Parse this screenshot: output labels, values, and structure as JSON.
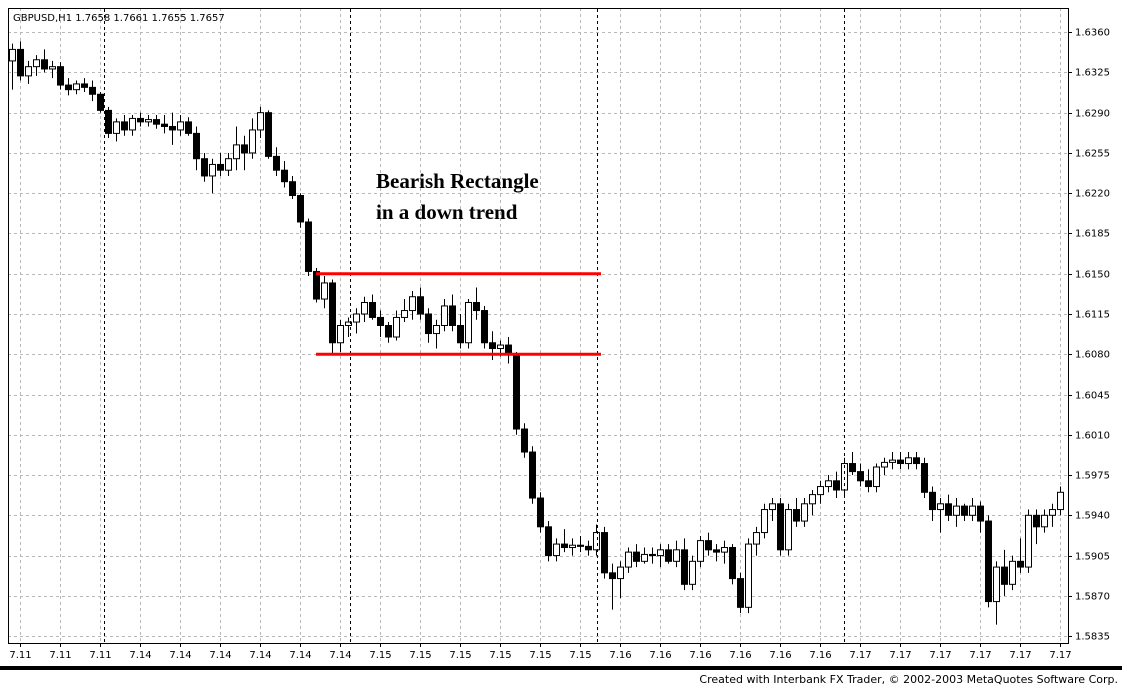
{
  "chart_data": {
    "type": "candlestick",
    "title": "GBPUSD,H1  1.7658 1.7661 1.7655 1.7657",
    "annotation": [
      "Bearish Rectangle",
      "in a down trend"
    ],
    "footer": "Created with Interbank FX Trader, © 2002-2003 MetaQuotes Software Corp.",
    "up_color": "#ffffff",
    "down_color": "#000000",
    "grid": true,
    "ylim": [
      1.5829,
      1.6381
    ],
    "yticks": [
      {
        "value": 1.636,
        "label": "1.6360"
      },
      {
        "value": 1.6325,
        "label": "1.6325"
      },
      {
        "value": 1.629,
        "label": "1.6290"
      },
      {
        "value": 1.6255,
        "label": "1.6255"
      },
      {
        "value": 1.622,
        "label": "1.6220"
      },
      {
        "value": 1.6185,
        "label": "1.6185"
      },
      {
        "value": 1.615,
        "label": "1.6150"
      },
      {
        "value": 1.6115,
        "label": "1.6115"
      },
      {
        "value": 1.608,
        "label": "1.6080"
      },
      {
        "value": 1.6045,
        "label": "1.6045"
      },
      {
        "value": 1.601,
        "label": "1.6010"
      },
      {
        "value": 1.5975,
        "label": "1.5975"
      },
      {
        "value": 1.594,
        "label": "1.5940"
      },
      {
        "value": 1.5905,
        "label": "1.5905"
      },
      {
        "value": 1.587,
        "label": "1.5870"
      },
      {
        "value": 1.5835,
        "label": "1.5835"
      }
    ],
    "levels": [
      {
        "value": 1.615,
        "color": "#ff0000"
      },
      {
        "value": 1.608,
        "color": "#ff0000"
      }
    ],
    "categories": [
      null,
      "7.11",
      null,
      null,
      null,
      null,
      "7.11",
      null,
      null,
      null,
      null,
      "7.11",
      null,
      null,
      null,
      null,
      "7.14",
      null,
      null,
      null,
      null,
      "7.14",
      null,
      null,
      null,
      null,
      "7.14",
      null,
      null,
      null,
      null,
      "7.14",
      null,
      null,
      null,
      null,
      "7.14",
      null,
      null,
      null,
      null,
      "7.14",
      null,
      null,
      null,
      null,
      "7.15",
      null,
      null,
      null,
      null,
      "7.15",
      null,
      null,
      null,
      null,
      "7.15",
      null,
      null,
      null,
      null,
      "7.15",
      null,
      null,
      null,
      null,
      "7.15",
      null,
      null,
      null,
      null,
      "7.15",
      null,
      null,
      null,
      null,
      "7.16",
      null,
      null,
      null,
      null,
      "7.16",
      null,
      null,
      null,
      null,
      "7.16",
      null,
      null,
      null,
      null,
      "7.16",
      null,
      null,
      null,
      null,
      "7.16",
      null,
      null,
      null,
      null,
      "7.16",
      null,
      null,
      null,
      null,
      "7.17",
      null,
      null,
      null,
      null,
      "7.17",
      null,
      null,
      null,
      null,
      "7.17",
      null,
      null,
      null,
      null,
      "7.17",
      null,
      null,
      null,
      null,
      "7.17",
      null,
      null,
      null,
      null,
      "7.17"
    ],
    "ohlc": [
      [
        1.6335,
        1.635,
        1.631,
        1.6345
      ],
      [
        1.6345,
        1.6352,
        1.6318,
        1.6322
      ],
      [
        1.6322,
        1.6335,
        1.6315,
        1.633
      ],
      [
        1.633,
        1.634,
        1.6322,
        1.6336
      ],
      [
        1.6336,
        1.6345,
        1.6325,
        1.6328
      ],
      [
        1.6328,
        1.6335,
        1.632,
        1.633
      ],
      [
        1.633,
        1.6334,
        1.631,
        1.6314
      ],
      [
        1.6314,
        1.632,
        1.6305,
        1.631
      ],
      [
        1.631,
        1.6318,
        1.6306,
        1.6315
      ],
      [
        1.6315,
        1.632,
        1.6308,
        1.6312
      ],
      [
        1.6312,
        1.6318,
        1.63,
        1.6306
      ],
      [
        1.6306,
        1.6308,
        1.629,
        1.6292
      ],
      [
        1.6292,
        1.6295,
        1.6268,
        1.6272
      ],
      [
        1.6272,
        1.6285,
        1.6265,
        1.6282
      ],
      [
        1.6282,
        1.6288,
        1.627,
        1.6275
      ],
      [
        1.6275,
        1.6288,
        1.627,
        1.6285
      ],
      [
        1.6285,
        1.629,
        1.6278,
        1.6282
      ],
      [
        1.6282,
        1.6288,
        1.6278,
        1.6284
      ],
      [
        1.6284,
        1.6288,
        1.6276,
        1.628
      ],
      [
        1.628,
        1.6288,
        1.6272,
        1.6278
      ],
      [
        1.6278,
        1.629,
        1.6262,
        1.6275
      ],
      [
        1.6275,
        1.6288,
        1.627,
        1.6282
      ],
      [
        1.6282,
        1.6286,
        1.627,
        1.6272
      ],
      [
        1.6272,
        1.6278,
        1.624,
        1.625
      ],
      [
        1.625,
        1.6255,
        1.623,
        1.6235
      ],
      [
        1.6235,
        1.625,
        1.622,
        1.6245
      ],
      [
        1.6245,
        1.6255,
        1.6235,
        1.624
      ],
      [
        1.624,
        1.6255,
        1.6235,
        1.625
      ],
      [
        1.625,
        1.6278,
        1.624,
        1.6262
      ],
      [
        1.6262,
        1.627,
        1.624,
        1.6255
      ],
      [
        1.6255,
        1.6285,
        1.625,
        1.6275
      ],
      [
        1.6275,
        1.6295,
        1.6268,
        1.629
      ],
      [
        1.629,
        1.6292,
        1.625,
        1.6252
      ],
      [
        1.6252,
        1.626,
        1.6235,
        1.624
      ],
      [
        1.624,
        1.6248,
        1.6225,
        1.623
      ],
      [
        1.623,
        1.6235,
        1.6215,
        1.6218
      ],
      [
        1.6218,
        1.622,
        1.619,
        1.6195
      ],
      [
        1.6195,
        1.6198,
        1.6148,
        1.6152
      ],
      [
        1.6152,
        1.6155,
        1.6125,
        1.6128
      ],
      [
        1.6128,
        1.6148,
        1.612,
        1.6142
      ],
      [
        1.6142,
        1.6145,
        1.608,
        1.609
      ],
      [
        1.609,
        1.611,
        1.6082,
        1.6105
      ],
      [
        1.6105,
        1.6112,
        1.6095,
        1.6108
      ],
      [
        1.6108,
        1.612,
        1.6098,
        1.6115
      ],
      [
        1.6115,
        1.613,
        1.6108,
        1.6125
      ],
      [
        1.6125,
        1.6132,
        1.611,
        1.6112
      ],
      [
        1.6112,
        1.6118,
        1.6095,
        1.6105
      ],
      [
        1.6105,
        1.6108,
        1.609,
        1.6095
      ],
      [
        1.6095,
        1.6118,
        1.6092,
        1.6112
      ],
      [
        1.6112,
        1.6128,
        1.6108,
        1.6118
      ],
      [
        1.6118,
        1.6135,
        1.611,
        1.613
      ],
      [
        1.613,
        1.6138,
        1.611,
        1.6115
      ],
      [
        1.6115,
        1.612,
        1.609,
        1.6098
      ],
      [
        1.6098,
        1.611,
        1.6085,
        1.6105
      ],
      [
        1.6105,
        1.6128,
        1.61,
        1.6122
      ],
      [
        1.6122,
        1.6132,
        1.61,
        1.6105
      ],
      [
        1.6105,
        1.6115,
        1.6085,
        1.609
      ],
      [
        1.609,
        1.6128,
        1.6085,
        1.6125
      ],
      [
        1.6125,
        1.6138,
        1.611,
        1.6118
      ],
      [
        1.6118,
        1.6122,
        1.6085,
        1.609
      ],
      [
        1.609,
        1.61,
        1.6075,
        1.6085
      ],
      [
        1.6085,
        1.6092,
        1.6078,
        1.6088
      ],
      [
        1.6088,
        1.6095,
        1.6072,
        1.608
      ],
      [
        1.608,
        1.6082,
        1.601,
        1.6015
      ],
      [
        1.6015,
        1.602,
        1.599,
        1.5995
      ],
      [
        1.5995,
        1.6,
        1.595,
        1.5955
      ],
      [
        1.5955,
        1.596,
        1.5925,
        1.593
      ],
      [
        1.593,
        1.5935,
        1.59,
        1.5905
      ],
      [
        1.5905,
        1.592,
        1.59,
        1.5915
      ],
      [
        1.5915,
        1.5928,
        1.5908,
        1.5912
      ],
      [
        1.5912,
        1.592,
        1.5905,
        1.5914
      ],
      [
        1.5914,
        1.5922,
        1.5908,
        1.5913
      ],
      [
        1.5913,
        1.5918,
        1.5905,
        1.591
      ],
      [
        1.591,
        1.5932,
        1.5905,
        1.5925
      ],
      [
        1.5925,
        1.593,
        1.5885,
        1.589
      ],
      [
        1.589,
        1.5898,
        1.5858,
        1.5885
      ],
      [
        1.5885,
        1.59,
        1.5868,
        1.5895
      ],
      [
        1.5895,
        1.5912,
        1.589,
        1.5908
      ],
      [
        1.5908,
        1.5915,
        1.5895,
        1.59
      ],
      [
        1.59,
        1.5912,
        1.5898,
        1.5906
      ],
      [
        1.5906,
        1.5912,
        1.5898,
        1.5905
      ],
      [
        1.5905,
        1.5915,
        1.5895,
        1.591
      ],
      [
        1.591,
        1.5915,
        1.5898,
        1.59
      ],
      [
        1.59,
        1.5918,
        1.5895,
        1.591
      ],
      [
        1.591,
        1.592,
        1.5875,
        1.588
      ],
      [
        1.588,
        1.5905,
        1.5875,
        1.59
      ],
      [
        1.59,
        1.5922,
        1.5895,
        1.5918
      ],
      [
        1.5918,
        1.5925,
        1.5905,
        1.591
      ],
      [
        1.591,
        1.5915,
        1.59,
        1.5908
      ],
      [
        1.5908,
        1.5918,
        1.5898,
        1.5912
      ],
      [
        1.5912,
        1.5915,
        1.588,
        1.5885
      ],
      [
        1.5885,
        1.589,
        1.5855,
        1.586
      ],
      [
        1.586,
        1.592,
        1.5855,
        1.5915
      ],
      [
        1.5915,
        1.593,
        1.5905,
        1.5925
      ],
      [
        1.5925,
        1.595,
        1.592,
        1.5945
      ],
      [
        1.5945,
        1.5955,
        1.5935,
        1.595
      ],
      [
        1.595,
        1.5955,
        1.5905,
        1.591
      ],
      [
        1.591,
        1.595,
        1.5905,
        1.5945
      ],
      [
        1.5945,
        1.5955,
        1.593,
        1.5935
      ],
      [
        1.5935,
        1.5955,
        1.593,
        1.595
      ],
      [
        1.595,
        1.5962,
        1.594,
        1.5958
      ],
      [
        1.5958,
        1.597,
        1.595,
        1.5965
      ],
      [
        1.5965,
        1.5975,
        1.596,
        1.597
      ],
      [
        1.597,
        1.5978,
        1.5955,
        1.5962
      ],
      [
        1.5962,
        1.599,
        1.5955,
        1.5985
      ],
      [
        1.5985,
        1.5995,
        1.5975,
        1.5978
      ],
      [
        1.5978,
        1.5985,
        1.5965,
        1.597
      ],
      [
        1.597,
        1.598,
        1.596,
        1.5965
      ],
      [
        1.5965,
        1.5985,
        1.596,
        1.5982
      ],
      [
        1.5982,
        1.599,
        1.5975,
        1.5986
      ],
      [
        1.5986,
        1.5995,
        1.598,
        1.5988
      ],
      [
        1.5988,
        1.5995,
        1.598,
        1.5985
      ],
      [
        1.5985,
        1.5995,
        1.598,
        1.599
      ],
      [
        1.599,
        1.5995,
        1.598,
        1.5985
      ],
      [
        1.5985,
        1.599,
        1.5955,
        1.596
      ],
      [
        1.596,
        1.5965,
        1.5935,
        1.5945
      ],
      [
        1.5945,
        1.5955,
        1.5925,
        1.595
      ],
      [
        1.595,
        1.5958,
        1.5935,
        1.594
      ],
      [
        1.594,
        1.5955,
        1.593,
        1.5948
      ],
      [
        1.5948,
        1.595,
        1.5935,
        1.594
      ],
      [
        1.594,
        1.5955,
        1.5935,
        1.5948
      ],
      [
        1.5948,
        1.5952,
        1.5925,
        1.5935
      ],
      [
        1.5935,
        1.594,
        1.586,
        1.5865
      ],
      [
        1.5865,
        1.59,
        1.5845,
        1.5895
      ],
      [
        1.5895,
        1.591,
        1.587,
        1.588
      ],
      [
        1.588,
        1.5905,
        1.5875,
        1.59
      ],
      [
        1.59,
        1.592,
        1.589,
        1.5895
      ],
      [
        1.5895,
        1.5945,
        1.589,
        1.594
      ],
      [
        1.594,
        1.5945,
        1.5915,
        1.593
      ],
      [
        1.593,
        1.5945,
        1.5925,
        1.594
      ],
      [
        1.594,
        1.595,
        1.593,
        1.5945
      ],
      [
        1.5945,
        1.5965,
        1.594,
        1.596
      ]
    ]
  }
}
